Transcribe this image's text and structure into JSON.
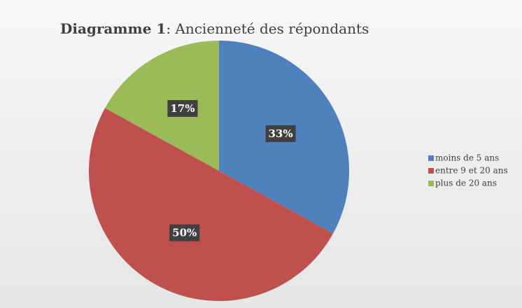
{
  "chart_data": {
    "type": "pie",
    "title": [
      "Diagramme 1",
      ": Ancienneté des répondants"
    ],
    "categories": [
      "moins de 5 ans",
      "entre 9 et 20 ans",
      "plus de 20 ans"
    ],
    "values": [
      33,
      50,
      17
    ],
    "value_labels": [
      "33%",
      "50%",
      "17%"
    ],
    "colors": [
      "#4f81bd",
      "#c0504d",
      "#9bbb59"
    ],
    "legend": "right"
  }
}
